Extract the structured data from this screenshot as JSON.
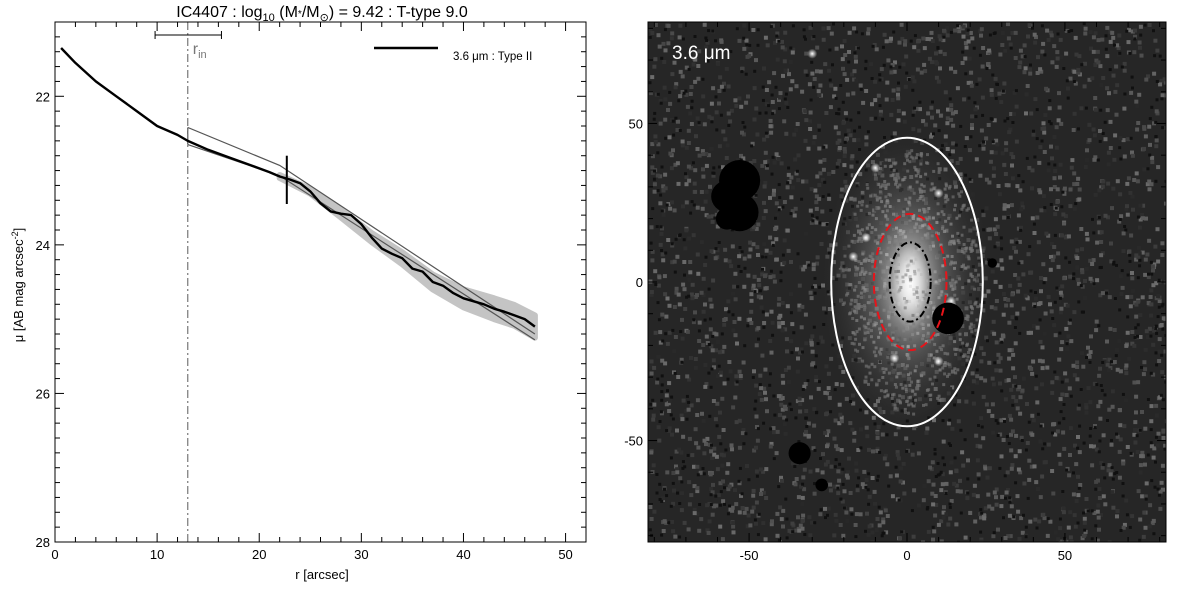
{
  "chart_data": [
    {
      "type": "line",
      "title": {
        "pre": "IC4407 : log",
        "sub1": "10",
        "mid": " (M",
        "star": "*",
        "slash": "/M",
        "sun": "⊙",
        "post": ") = 9.42 : T-type 9.0"
      },
      "xlabel": "r [arcsec]",
      "ylabel": {
        "main": "μ [AB mag arcsec",
        "sup": "-2",
        "end": "]"
      },
      "xlim": [
        0,
        52
      ],
      "ylim": [
        28,
        21
      ],
      "y_inverted": true,
      "xticks": [
        0,
        10,
        20,
        30,
        40,
        50
      ],
      "yticks": [
        22,
        24,
        26,
        28
      ],
      "grid": false,
      "legend": {
        "label": "3.6 μm : Type II",
        "placement": "top-right"
      },
      "annotations": {
        "r_in_label": "r",
        "r_in_sub": "in",
        "r_in_value": 13.0,
        "r_in_interval": [
          9.8,
          16.3
        ],
        "break_marker_x": 22.7,
        "break_marker_y": [
          22.8,
          23.45
        ]
      },
      "series": [
        {
          "name": "3.6 μm : Type II",
          "x": [
            0.6,
            2,
            4,
            6,
            8,
            10,
            12,
            13,
            15,
            17,
            19,
            21,
            22,
            23,
            24,
            25,
            26,
            27,
            28,
            29,
            30,
            31,
            32,
            33,
            34,
            35,
            36,
            37,
            38,
            39,
            40,
            41,
            42,
            43,
            44,
            45,
            46,
            47
          ],
          "y": [
            21.35,
            21.55,
            21.8,
            22.0,
            22.2,
            22.4,
            22.52,
            22.6,
            22.72,
            22.82,
            22.92,
            23.02,
            23.08,
            23.12,
            23.17,
            23.28,
            23.44,
            23.55,
            23.58,
            23.6,
            23.72,
            23.9,
            24.05,
            24.12,
            24.18,
            24.32,
            24.36,
            24.5,
            24.55,
            24.65,
            24.72,
            24.76,
            24.8,
            24.86,
            24.9,
            24.95,
            25.0,
            25.1
          ]
        },
        {
          "name": "",
          "x": [
            13,
            22,
            47
          ],
          "y": [
            22.42,
            22.93,
            25.2
          ]
        },
        {
          "name": "",
          "x": [
            13,
            22,
            47
          ],
          "y": [
            22.65,
            23.07,
            25.28
          ]
        }
      ],
      "uncertainty_band": {
        "x": [
          22,
          25,
          28,
          31,
          34,
          37,
          40,
          43,
          45,
          47
        ],
        "half_width": [
          0.02,
          0.03,
          0.05,
          0.06,
          0.08,
          0.1,
          0.12,
          0.14,
          0.14,
          0.15
        ]
      }
    },
    {
      "type": "heatmap",
      "label": "3.6 μm",
      "xlim": [
        -82,
        82
      ],
      "ylim": [
        -82,
        82
      ],
      "xticks": [
        -50,
        0,
        50
      ],
      "yticks": [
        -50,
        0,
        50
      ],
      "colormap": "grayscale",
      "ellipses": [
        {
          "name": "outer",
          "cx": 0,
          "cy": 0,
          "rx": 24,
          "ry": 45.5,
          "color": "#ffffff",
          "style": "solid"
        },
        {
          "name": "break",
          "cx": 1,
          "cy": 0,
          "rx": 11.5,
          "ry": 21.5,
          "color": "#e8141a",
          "style": "dashed"
        },
        {
          "name": "inner",
          "cx": 1,
          "cy": 0,
          "rx": 6.5,
          "ry": 12.5,
          "color": "#000000",
          "style": "dash-dot"
        }
      ],
      "masks": [
        {
          "x": -53,
          "y": 32,
          "r": 6.5
        },
        {
          "x": -57,
          "y": 27,
          "r": 5
        },
        {
          "x": -53,
          "y": 22,
          "r": 6
        },
        {
          "x": -57,
          "y": 20,
          "r": 3.5
        },
        {
          "x": 13,
          "y": -11.5,
          "r": 5
        },
        {
          "x": -34,
          "y": -54,
          "r": 3.5
        },
        {
          "x": -27,
          "y": -64,
          "r": 2
        },
        {
          "x": 27,
          "y": 6,
          "r": 1.5
        }
      ],
      "bright_spots": [
        {
          "x": -10,
          "y": 36
        },
        {
          "x": 10,
          "y": 28
        },
        {
          "x": -13,
          "y": 14
        },
        {
          "x": 10,
          "y": -25
        },
        {
          "x": -4,
          "y": -24
        },
        {
          "x": 14,
          "y": -6
        },
        {
          "x": -17,
          "y": 8
        },
        {
          "x": -30,
          "y": 72
        }
      ]
    }
  ]
}
